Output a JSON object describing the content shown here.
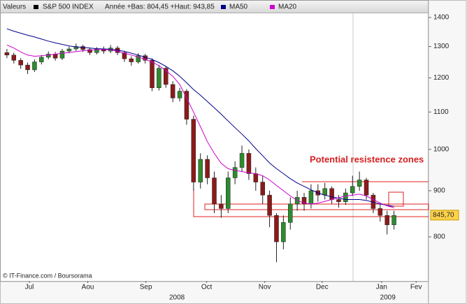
{
  "chart_data": {
    "type": "candlestick",
    "header_label": "Valeurs",
    "instrument": "S&P 500 INDEX",
    "instrument_color": "#000000",
    "subtitle": "Année +Bas: 804,45 +Haut: 943,85",
    "annotation": "Potential resistence zones",
    "source": "© IT-Finance.com / Boursorama",
    "log_scale": true,
    "grid": false,
    "up_color": "#2e8b2e",
    "down_color": "#8b1a1a",
    "x": [
      1,
      2,
      3,
      4,
      5,
      6,
      7,
      8,
      9,
      10,
      11,
      12,
      13,
      14,
      15,
      16,
      17,
      18,
      19,
      20,
      21,
      22,
      23,
      24,
      25,
      26,
      27,
      28,
      29,
      30,
      31,
      32,
      33,
      34,
      35,
      36,
      37,
      38,
      39,
      40,
      41,
      42,
      43,
      44,
      45,
      46,
      47,
      48,
      49,
      50,
      51,
      52,
      53,
      54,
      55,
      56,
      57
    ],
    "open": [
      1280,
      1272,
      1255,
      1240,
      1225,
      1250,
      1265,
      1275,
      1262,
      1285,
      1292,
      1300,
      1290,
      1280,
      1292,
      1285,
      1295,
      1280,
      1260,
      1250,
      1270,
      1255,
      1170,
      1230,
      1180,
      1140,
      1160,
      1080,
      920,
      975,
      930,
      870,
      860,
      930,
      955,
      990,
      940,
      920,
      890,
      845,
      790,
      830,
      870,
      885,
      870,
      900,
      890,
      905,
      880,
      875,
      895,
      910,
      925,
      890,
      860,
      845,
      825
    ],
    "high": [
      1292,
      1280,
      1262,
      1248,
      1258,
      1272,
      1284,
      1282,
      1292,
      1300,
      1310,
      1306,
      1296,
      1298,
      1300,
      1305,
      1302,
      1286,
      1268,
      1278,
      1276,
      1262,
      1240,
      1236,
      1190,
      1170,
      1166,
      1090,
      990,
      985,
      945,
      890,
      945,
      970,
      1010,
      1000,
      955,
      935,
      900,
      850,
      845,
      885,
      900,
      895,
      915,
      915,
      918,
      910,
      890,
      905,
      935,
      945,
      930,
      895,
      870,
      855,
      855
    ],
    "low": [
      1262,
      1245,
      1228,
      1212,
      1218,
      1242,
      1258,
      1254,
      1256,
      1278,
      1285,
      1282,
      1272,
      1274,
      1276,
      1278,
      1272,
      1250,
      1238,
      1244,
      1245,
      1160,
      1162,
      1170,
      1128,
      1130,
      1065,
      900,
      905,
      915,
      850,
      840,
      850,
      915,
      945,
      925,
      900,
      870,
      820,
      750,
      775,
      815,
      855,
      855,
      860,
      875,
      880,
      870,
      862,
      868,
      888,
      900,
      880,
      850,
      832,
      805,
      815
    ],
    "close": [
      1272,
      1255,
      1240,
      1225,
      1250,
      1265,
      1275,
      1262,
      1285,
      1292,
      1300,
      1290,
      1280,
      1292,
      1285,
      1295,
      1280,
      1260,
      1250,
      1270,
      1255,
      1170,
      1230,
      1180,
      1140,
      1160,
      1080,
      920,
      975,
      930,
      870,
      860,
      930,
      955,
      990,
      940,
      920,
      890,
      845,
      790,
      830,
      870,
      885,
      870,
      900,
      890,
      905,
      880,
      875,
      895,
      910,
      925,
      890,
      860,
      845,
      825,
      845
    ],
    "series": [
      {
        "name": "MA50",
        "color": "#00008b",
        "values": [
          1360,
          1352,
          1345,
          1338,
          1332,
          1325,
          1318,
          1312,
          1307,
          1302,
          1299,
          1297,
          1295,
          1293,
          1292,
          1291,
          1288,
          1284,
          1278,
          1272,
          1265,
          1258,
          1248,
          1236,
          1222,
          1205,
          1185,
          1165,
          1148,
          1130,
          1112,
          1094,
          1075,
          1057,
          1040,
          1022,
          1002,
          984,
          966,
          952,
          940,
          928,
          918,
          910,
          902,
          895,
          890,
          886,
          883,
          880,
          880,
          880,
          878,
          874,
          870,
          867,
          865
        ]
      },
      {
        "name": "MA20",
        "color": "#cc00cc",
        "values": [
          1305,
          1295,
          1282,
          1272,
          1268,
          1270,
          1272,
          1275,
          1278,
          1280,
          1283,
          1286,
          1288,
          1290,
          1290,
          1289,
          1285,
          1278,
          1272,
          1266,
          1258,
          1250,
          1238,
          1222,
          1205,
          1180,
          1140,
          1100,
          1060,
          1020,
          990,
          965,
          952,
          948,
          945,
          942,
          940,
          935,
          925,
          912,
          900,
          888,
          878,
          872,
          870,
          872,
          876,
          880,
          884,
          888,
          890,
          892,
          888,
          880,
          872,
          866,
          862
        ]
      }
    ],
    "last_price": {
      "value": 845.7,
      "label": "845,70"
    },
    "xlim": [
      0,
      62
    ],
    "xticks": [
      {
        "value": 4.25,
        "label": "Jul"
      },
      {
        "value": 12.7,
        "label": "Aou"
      },
      {
        "value": 21.1,
        "label": "Sep"
      },
      {
        "value": 29.9,
        "label": "Oct"
      },
      {
        "value": 38.3,
        "label": "Nov"
      },
      {
        "value": 46.6,
        "label": "Dec"
      },
      {
        "value": 55.2,
        "label": "Jan"
      },
      {
        "value": 60.2,
        "label": "Fev"
      }
    ],
    "years": [
      {
        "value": 25.6,
        "label": "2008"
      },
      {
        "value": 56.1,
        "label": "2009"
      }
    ],
    "ylim": [
      715,
      1415
    ],
    "yticks": [
      800,
      900,
      1000,
      1100,
      1200,
      1300,
      1400
    ]
  }
}
